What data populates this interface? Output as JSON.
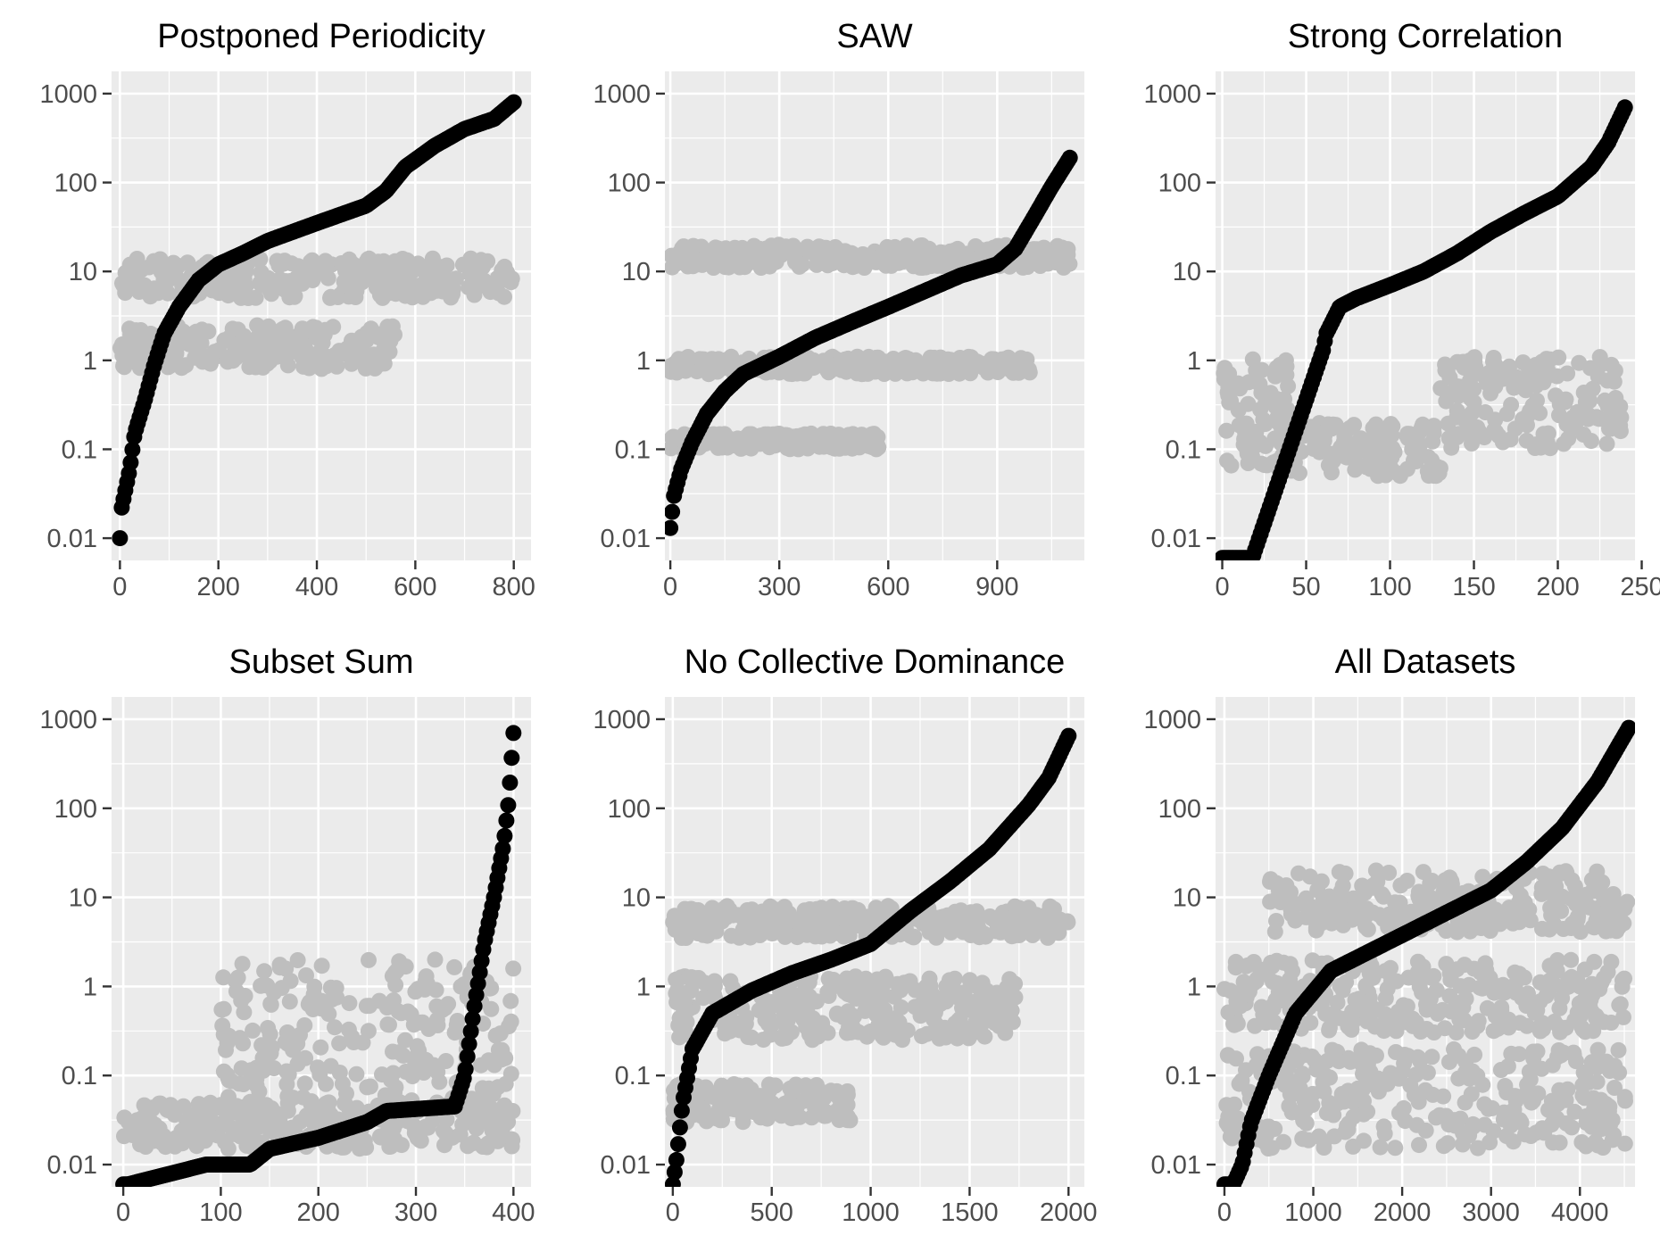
{
  "colors": {
    "panel_bg": "#ebebeb",
    "grid": "#ffffff",
    "series_black": "#000000",
    "series_gray": "#bebebe",
    "tick": "#333333",
    "tick_label": "#4d4d4d"
  },
  "chart_data": [
    {
      "type": "scatter",
      "title": "Postponed Periodicity",
      "y_scale": "log",
      "y_ticks": [
        0.01,
        0.1,
        1,
        10,
        100,
        1000
      ],
      "y_tick_labels": [
        "0.01",
        "0.1",
        "1",
        "10",
        "100",
        "1000"
      ],
      "x_ticks": [
        0,
        200,
        400,
        600,
        800
      ],
      "x_tick_labels": [
        "0",
        "200",
        "400",
        "600",
        "800"
      ],
      "xlim": [
        -17,
        835
      ],
      "ylim_log10": [
        -2.25,
        3.25
      ],
      "series": [
        {
          "values": [
            [
              0,
              0.01
            ],
            [
              2,
              0.02
            ],
            [
              20,
              0.06
            ],
            [
              30,
              0.15
            ],
            [
              50,
              0.35
            ],
            [
              70,
              0.9
            ],
            [
              90,
              2
            ],
            [
              120,
              4
            ],
            [
              160,
              8
            ],
            [
              200,
              12
            ],
            [
              250,
              16
            ],
            [
              300,
              22
            ],
            [
              400,
              35
            ],
            [
              500,
              55
            ],
            [
              540,
              80
            ],
            [
              580,
              150
            ],
            [
              640,
              260
            ],
            [
              700,
              400
            ],
            [
              760,
              520
            ],
            [
              800,
              800
            ]
          ]
        },
        {
          "bands": [
            {
              "x": [
                0,
                800
              ],
              "y": [
                5,
                14
              ]
            },
            {
              "x": [
                0,
                560
              ],
              "y": [
                0.8,
                2.5
              ]
            }
          ]
        }
      ]
    },
    {
      "type": "scatter",
      "title": "SAW",
      "y_scale": "log",
      "y_ticks": [
        0.01,
        0.1,
        1,
        10,
        100,
        1000
      ],
      "y_tick_labels": [
        "0.01",
        "0.1",
        "1",
        "10",
        "100",
        "1000"
      ],
      "x_ticks": [
        0,
        300,
        600,
        900
      ],
      "x_tick_labels": [
        "0",
        "300",
        "600",
        "900"
      ],
      "xlim": [
        -15,
        1140
      ],
      "ylim_log10": [
        -2.25,
        3.25
      ],
      "series": [
        {
          "values": [
            [
              0,
              0.013
            ],
            [
              10,
              0.03
            ],
            [
              30,
              0.06
            ],
            [
              60,
              0.12
            ],
            [
              100,
              0.25
            ],
            [
              150,
              0.45
            ],
            [
              200,
              0.7
            ],
            [
              300,
              1.1
            ],
            [
              400,
              1.8
            ],
            [
              500,
              2.7
            ],
            [
              600,
              4
            ],
            [
              700,
              6
            ],
            [
              800,
              9
            ],
            [
              900,
              12
            ],
            [
              950,
              18
            ],
            [
              1000,
              40
            ],
            [
              1050,
              90
            ],
            [
              1100,
              190
            ]
          ]
        },
        {
          "bands": [
            {
              "x": [
                0,
                1100
              ],
              "y": [
                11,
                20
              ]
            },
            {
              "x": [
                0,
                1000
              ],
              "y": [
                0.7,
                1.1
              ]
            },
            {
              "x": [
                0,
                580
              ],
              "y": [
                0.1,
                0.15
              ]
            }
          ]
        }
      ]
    },
    {
      "type": "scatter",
      "title": "Strong Correlation",
      "y_scale": "log",
      "y_ticks": [
        0.01,
        0.1,
        1,
        10,
        100,
        1000
      ],
      "y_tick_labels": [
        "0.01",
        "0.1",
        "1",
        "10",
        "100",
        "1000"
      ],
      "x_ticks": [
        0,
        50,
        100,
        150,
        200,
        250
      ],
      "x_tick_labels": [
        "0",
        "50",
        "100",
        "150",
        "200",
        "250"
      ],
      "xlim": [
        -4,
        246
      ],
      "ylim_log10": [
        -2.25,
        3.25
      ],
      "series": [
        {
          "values": [
            [
              0,
              0.006
            ],
            [
              18,
              0.006
            ],
            [
              60,
              1.3
            ],
            [
              62,
              2
            ],
            [
              70,
              4
            ],
            [
              80,
              5
            ],
            [
              100,
              7
            ],
            [
              120,
              10
            ],
            [
              140,
              16
            ],
            [
              160,
              28
            ],
            [
              180,
              45
            ],
            [
              200,
              70
            ],
            [
              220,
              150
            ],
            [
              230,
              280
            ],
            [
              240,
              700
            ]
          ]
        },
        {
          "bands": [
            {
              "x": [
                0,
                40
              ],
              "y": [
                0.05,
                1.1
              ]
            },
            {
              "x": [
                40,
                130
              ],
              "y": [
                0.05,
                0.2
              ]
            },
            {
              "x": [
                130,
                240
              ],
              "y": [
                0.1,
                1.1
              ]
            }
          ]
        }
      ]
    },
    {
      "type": "scatter",
      "title": "Subset Sum",
      "y_scale": "log",
      "y_ticks": [
        0.01,
        0.1,
        1,
        10,
        100,
        1000
      ],
      "y_tick_labels": [
        "0.01",
        "0.1",
        "1",
        "10",
        "100",
        "1000"
      ],
      "x_ticks": [
        0,
        100,
        200,
        300,
        400
      ],
      "x_tick_labels": [
        "0",
        "100",
        "200",
        "300",
        "400"
      ],
      "xlim": [
        -12,
        418
      ],
      "ylim_log10": [
        -2.25,
        3.25
      ],
      "series": [
        {
          "values": [
            [
              0,
              0.006
            ],
            [
              5,
              0.006
            ],
            [
              85,
              0.01
            ],
            [
              130,
              0.01
            ],
            [
              150,
              0.015
            ],
            [
              200,
              0.02
            ],
            [
              250,
              0.03
            ],
            [
              270,
              0.04
            ],
            [
              340,
              0.045
            ],
            [
              350,
              0.1
            ],
            [
              360,
              0.6
            ],
            [
              370,
              3
            ],
            [
              380,
              10
            ],
            [
              390,
              40
            ],
            [
              395,
              120
            ],
            [
              400,
              700
            ]
          ]
        },
        {
          "bands": [
            {
              "x": [
                0,
                400
              ],
              "y": [
                0.015,
                0.05
              ]
            },
            {
              "x": [
                100,
                400
              ],
              "y": [
                0.05,
                2
              ]
            }
          ]
        }
      ]
    },
    {
      "type": "scatter",
      "title": "No Collective Dominance",
      "y_scale": "log",
      "y_ticks": [
        0.01,
        0.1,
        1,
        10,
        100,
        1000
      ],
      "y_tick_labels": [
        "0.01",
        "0.1",
        "1",
        "10",
        "100",
        "1000"
      ],
      "x_ticks": [
        0,
        500,
        1000,
        1500,
        2000
      ],
      "x_tick_labels": [
        "0",
        "500",
        "1000",
        "1500",
        "2000"
      ],
      "xlim": [
        -40,
        2080
      ],
      "ylim_log10": [
        -2.25,
        3.25
      ],
      "series": [
        {
          "values": [
            [
              0,
              0.006
            ],
            [
              20,
              0.012
            ],
            [
              50,
              0.05
            ],
            [
              100,
              0.2
            ],
            [
              200,
              0.5
            ],
            [
              400,
              0.9
            ],
            [
              600,
              1.4
            ],
            [
              800,
              2
            ],
            [
              1000,
              3
            ],
            [
              1200,
              7
            ],
            [
              1400,
              15
            ],
            [
              1600,
              35
            ],
            [
              1800,
              110
            ],
            [
              1900,
              220
            ],
            [
              2000,
              650
            ]
          ]
        },
        {
          "bands": [
            {
              "x": [
                0,
                2000
              ],
              "y": [
                3.5,
                8
              ]
            },
            {
              "x": [
                0,
                1750
              ],
              "y": [
                0.25,
                1.3
              ]
            },
            {
              "x": [
                0,
                900
              ],
              "y": [
                0.03,
                0.08
              ]
            }
          ]
        }
      ]
    },
    {
      "type": "scatter",
      "title": "All Datasets",
      "y_scale": "log",
      "y_ticks": [
        0.01,
        0.1,
        1,
        10,
        100,
        1000
      ],
      "y_tick_labels": [
        "0.01",
        "0.1",
        "1",
        "10",
        "100",
        "1000"
      ],
      "x_ticks": [
        0,
        1000,
        2000,
        3000,
        4000
      ],
      "x_tick_labels": [
        "0",
        "1000",
        "2000",
        "3000",
        "4000"
      ],
      "xlim": [
        -100,
        4620
      ],
      "ylim_log10": [
        -2.25,
        3.25
      ],
      "series": [
        {
          "values": [
            [
              0,
              0.006
            ],
            [
              100,
              0.006
            ],
            [
              200,
              0.01
            ],
            [
              300,
              0.03
            ],
            [
              500,
              0.1
            ],
            [
              800,
              0.5
            ],
            [
              1200,
              1.5
            ],
            [
              1800,
              3
            ],
            [
              2400,
              6
            ],
            [
              3000,
              12
            ],
            [
              3400,
              25
            ],
            [
              3800,
              60
            ],
            [
              4200,
              200
            ],
            [
              4550,
              800
            ]
          ]
        },
        {
          "bands": [
            {
              "x": [
                0,
                4550
              ],
              "y": [
                0.015,
                0.2
              ]
            },
            {
              "x": [
                0,
                4550
              ],
              "y": [
                0.3,
                2
              ]
            },
            {
              "x": [
                500,
                4550
              ],
              "y": [
                4,
                20
              ]
            }
          ]
        }
      ]
    }
  ]
}
